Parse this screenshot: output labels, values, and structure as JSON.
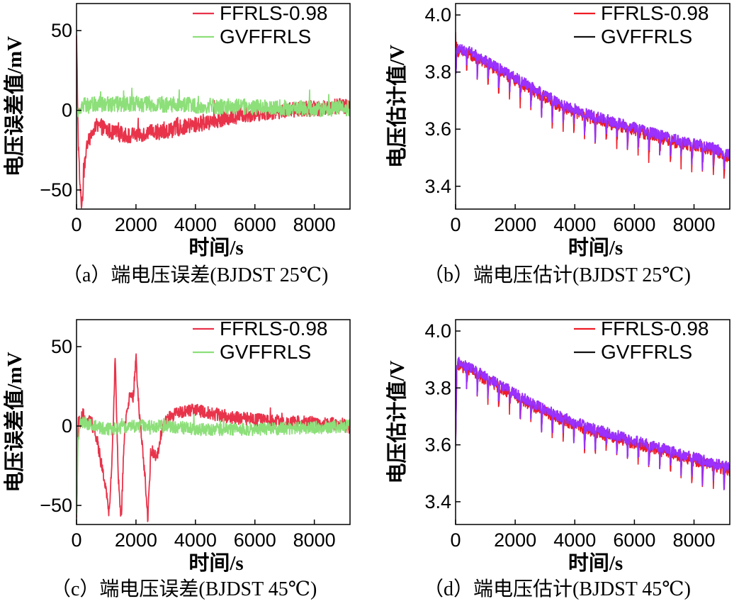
{
  "figure": {
    "title": ""
  },
  "chart_data": [
    {
      "panel": "a",
      "type": "line",
      "caption": "（a）端电压误差(BJDST 25℃)",
      "xlabel": "时间/s",
      "ylabel": "电压误差值/mV",
      "xlim": [
        0,
        9200
      ],
      "ylim": [
        -62,
        67
      ],
      "xticks": [
        0,
        2000,
        4000,
        6000,
        8000
      ],
      "yticks": [
        50,
        0,
        -50
      ],
      "ytick_labels": [
        "50",
        "0",
        "−50"
      ],
      "legend": {
        "position": "top-right"
      },
      "series": [
        {
          "name": "FFRLS-0.98",
          "color": "#e8334a",
          "x": [
            0,
            60,
            120,
            180,
            250,
            320,
            400,
            500,
            600,
            800,
            1000,
            1200,
            1500,
            1800,
            2100,
            2500,
            3000,
            3500,
            4000,
            4500,
            5000,
            5500,
            6000,
            6500,
            7000,
            7500,
            8000,
            8500,
            9000,
            9200
          ],
          "y": [
            45,
            -20,
            -50,
            -60,
            -40,
            -25,
            -20,
            -15,
            -12,
            -10,
            -12,
            -14,
            -15,
            -16,
            -15,
            -14,
            -13,
            -11,
            -9,
            -7,
            -5,
            -3,
            -2,
            -1,
            0,
            1,
            1,
            2,
            3,
            2
          ],
          "noise": 5
        },
        {
          "name": "GVFFRLS",
          "color": "#8ddf7a",
          "x": [
            0,
            50,
            120,
            200,
            400,
            800,
            1500,
            2500,
            4000,
            6000,
            8000,
            9200
          ],
          "y": [
            0,
            -5,
            2,
            3,
            3,
            4,
            4,
            4,
            3,
            2,
            1,
            1
          ],
          "noise": 5
        }
      ]
    },
    {
      "panel": "b",
      "type": "line",
      "caption": "（b）端电压估计(BJDST 25℃)",
      "xlabel": "时间/s",
      "ylabel": "电压估计值/V",
      "xlim": [
        0,
        9200
      ],
      "ylim": [
        3.32,
        4.04
      ],
      "xticks": [
        0,
        2000,
        4000,
        6000,
        8000
      ],
      "yticks": [
        4.0,
        3.8,
        3.6,
        3.4
      ],
      "ytick_labels": [
        "4.0",
        "3.8",
        "3.6",
        "3.4"
      ],
      "legend": {
        "position": "top-right"
      },
      "series": [
        {
          "name": "FFRLS-0.98",
          "color": "#ee1c25",
          "x": [
            0,
            40,
            100,
            500,
            1500,
            2500,
            3500,
            4500,
            5500,
            6500,
            7500,
            8500,
            9200
          ],
          "y": [
            4.01,
            3.88,
            3.87,
            3.86,
            3.8,
            3.74,
            3.68,
            3.64,
            3.61,
            3.58,
            3.55,
            3.53,
            3.5
          ],
          "noise": 0.08
        },
        {
          "name": "GVFFRLS",
          "color": "#111111",
          "x": [
            0,
            40,
            100,
            500,
            1500,
            2500,
            3500,
            4500,
            5500,
            6500,
            7500,
            8500,
            9200
          ],
          "y": [
            3.86,
            3.88,
            3.88,
            3.87,
            3.81,
            3.75,
            3.69,
            3.65,
            3.62,
            3.59,
            3.56,
            3.54,
            3.51
          ],
          "noise": 0.075
        }
      ]
    },
    {
      "panel": "c",
      "type": "line",
      "caption": "（c）端电压误差(BJDST 45℃)",
      "xlabel": "时间/s",
      "ylabel": "电压误差值/mV",
      "xlim": [
        0,
        9200
      ],
      "ylim": [
        -62,
        67
      ],
      "xticks": [
        0,
        2000,
        4000,
        6000,
        8000
      ],
      "yticks": [
        50,
        0,
        -50
      ],
      "ytick_labels": [
        "50",
        "0",
        "−50"
      ],
      "legend": {
        "position": "top-right"
      },
      "series": [
        {
          "name": "FFRLS-0.98",
          "color": "#e8334a",
          "x": [
            0,
            60,
            150,
            300,
            500,
            700,
            900,
            1100,
            1200,
            1300,
            1400,
            1500,
            1600,
            1700,
            1800,
            1900,
            2000,
            2100,
            2200,
            2300,
            2400,
            2500,
            2700,
            2900,
            3100,
            3400,
            3700,
            4000,
            4500,
            5000,
            6000,
            7000,
            8000,
            9000,
            9200
          ],
          "y": [
            -60,
            5,
            0,
            5,
            3,
            -10,
            -30,
            -55,
            -20,
            45,
            -30,
            -60,
            -10,
            10,
            20,
            15,
            45,
            10,
            -10,
            -30,
            -60,
            -15,
            -20,
            0,
            5,
            8,
            10,
            10,
            8,
            6,
            4,
            3,
            2,
            1,
            -3
          ],
          "noise": 4
        },
        {
          "name": "GVFFRLS",
          "color": "#8ddf7a",
          "x": [
            0,
            50,
            150,
            300,
            600,
            1000,
            2000,
            3000,
            4000,
            6000,
            8000,
            9200
          ],
          "y": [
            -60,
            -8,
            3,
            2,
            0,
            -2,
            0,
            0,
            -2,
            -2,
            -1,
            0
          ],
          "noise": 4
        }
      ]
    },
    {
      "panel": "d",
      "type": "line",
      "caption": "（d）端电压估计(BJDST 45℃)",
      "xlabel": "时间/s",
      "ylabel": "电压估计值/V",
      "xlim": [
        0,
        9200
      ],
      "ylim": [
        3.32,
        4.04
      ],
      "xticks": [
        0,
        2000,
        4000,
        6000,
        8000
      ],
      "yticks": [
        4.0,
        3.8,
        3.6,
        3.4
      ],
      "ytick_labels": [
        "4.0",
        "3.8",
        "3.6",
        "3.4"
      ],
      "legend": {
        "position": "top-right"
      },
      "series": [
        {
          "name": "FFRLS-0.98",
          "color": "#ee1c25",
          "x": [
            0,
            40,
            100,
            500,
            1500,
            2500,
            3500,
            4500,
            5500,
            6500,
            7500,
            8500,
            9200
          ],
          "y": [
            3.66,
            3.86,
            3.88,
            3.86,
            3.8,
            3.74,
            3.69,
            3.65,
            3.62,
            3.59,
            3.56,
            3.53,
            3.51
          ],
          "noise": 0.08
        },
        {
          "name": "GVFFRLS",
          "color": "#111111",
          "x": [
            0,
            40,
            100,
            500,
            1500,
            2500,
            3500,
            4500,
            5500,
            6500,
            7500,
            8500,
            9200
          ],
          "y": [
            3.66,
            3.87,
            3.89,
            3.87,
            3.81,
            3.75,
            3.7,
            3.66,
            3.63,
            3.6,
            3.57,
            3.54,
            3.52
          ],
          "noise": 0.075
        }
      ]
    }
  ],
  "overlay_color": "#9b30ff",
  "axis_color": "#000000"
}
